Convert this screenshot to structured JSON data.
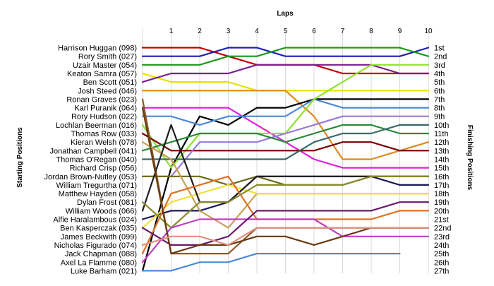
{
  "chart_data": {
    "type": "line",
    "x_title": "Laps",
    "left_axis_title": "Starting Positions",
    "right_axis_title": "Finishing Positions",
    "x": [
      0,
      1,
      2,
      3,
      4,
      5,
      6,
      7,
      8,
      9,
      10
    ],
    "lap_labels": [
      "1",
      "2",
      "3",
      "4",
      "5",
      "6",
      "7",
      "8",
      "9",
      "10"
    ],
    "start_labels": [
      "Harrison Huggan (098)",
      "Rory Smith (027)",
      "Uzair Master (054)",
      "Keaton Samra (057)",
      "Ben Scott (051)",
      "Josh Steed (046)",
      "Ronan Graves (023)",
      "Karl Puranik (064)",
      "Rory Hudson (022)",
      "Lochlan Beerman (016)",
      "Thomas Row (033)",
      "Kieran Welsh (078)",
      "Jonathan Campbell (041)",
      "Thomas O'Regan (040)",
      "Richard Crisp (056)",
      "Jordan Brown-Nutley (053)",
      "William Tregurtha (071)",
      "Matthew Hayden (058)",
      "Dylan Frost (081)",
      "William Woods (066)",
      "Alfie Haralambous (024)",
      "Ben Kasperczak (035)",
      "James Beckwith (099)",
      "Nicholas Figurado (074)",
      "Jack Chapman (088)",
      "Axel La Flamme (080)",
      "Luke Barham (021)"
    ],
    "finish_labels": [
      "1st",
      "2nd",
      "3rd",
      "4th",
      "5th",
      "6th",
      "7th",
      "8th",
      "9th",
      "10th",
      "11th",
      "12th",
      "13th",
      "14th",
      "15th",
      "16th",
      "17th",
      "18th",
      "19th",
      "20th",
      "21st",
      "22nd",
      "23rd",
      "24th",
      "25th",
      "26th",
      "27th"
    ],
    "series": [
      {
        "color": "#c00000",
        "values": [
          1,
          1,
          1,
          2,
          3,
          3,
          3,
          4,
          4,
          4,
          4
        ]
      },
      {
        "color": "#1f1fb4",
        "values": [
          2,
          2,
          2,
          1,
          1,
          2,
          2,
          2,
          2,
          2,
          1
        ]
      },
      {
        "color": "#1a9a1a",
        "values": [
          3,
          3,
          3,
          2,
          2,
          1,
          1,
          1,
          1,
          1,
          2
        ]
      },
      {
        "color": "#e8e000",
        "values": [
          4,
          5,
          5,
          5,
          6,
          6,
          6,
          6,
          6,
          6,
          6
        ]
      },
      {
        "color": "#7a1f8f",
        "values": [
          5,
          4,
          4,
          4,
          3,
          3,
          3,
          3,
          3,
          4,
          4
        ]
      },
      {
        "color": "#e08a1a",
        "values": [
          6,
          6,
          6,
          6,
          6,
          6,
          9,
          14,
          14,
          13,
          12
        ]
      },
      {
        "color": "#000000",
        "values": [
          27,
          15,
          9,
          10,
          8,
          8,
          7,
          7,
          7,
          7,
          7
        ]
      },
      {
        "color": "#e020e0",
        "values": [
          8,
          8,
          8,
          8,
          10,
          12,
          14,
          15,
          15,
          15,
          15
        ]
      },
      {
        "color": "#4a8ad8",
        "values": [
          9,
          9,
          10,
          9,
          9,
          9,
          7,
          8,
          8,
          8,
          8
        ]
      },
      {
        "color": "#90e030",
        "values": [
          10,
          15,
          11,
          11,
          11,
          11,
          7,
          5,
          3,
          3,
          3
        ]
      },
      {
        "color": "#7a0000",
        "values": [
          11,
          13,
          13,
          13,
          13,
          13,
          13,
          12,
          12,
          13,
          13
        ]
      },
      {
        "color": "#9a7ad8",
        "values": [
          16,
          16,
          12,
          12,
          12,
          11,
          10,
          9,
          9,
          9,
          9
        ]
      },
      {
        "color": "#2a8a3a",
        "values": [
          13,
          12,
          11,
          11,
          11,
          12,
          11,
          10,
          10,
          11,
          11
        ]
      },
      {
        "color": "#3a6a6a",
        "values": [
          14,
          14,
          14,
          14,
          14,
          14,
          12,
          11,
          11,
          10,
          10
        ]
      },
      {
        "color": "#8a5a2a",
        "values": [
          7,
          25,
          25,
          25,
          22,
          22,
          22,
          22,
          22,
          22,
          22
        ]
      },
      {
        "color": "#6a6a1a",
        "values": [
          16,
          16,
          16,
          17,
          16,
          17,
          17,
          17,
          16,
          16,
          16
        ]
      },
      {
        "color": "#1a1a5a",
        "values": [
          21,
          20,
          20,
          19,
          16,
          16,
          16,
          16,
          16,
          17,
          17
        ]
      },
      {
        "color": "#c8a050",
        "values": [
          12,
          14,
          20,
          22,
          18,
          18,
          18,
          18,
          18,
          18,
          18
        ]
      },
      {
        "color": "#f0e040",
        "values": [
          22,
          19,
          18,
          17,
          18,
          18,
          18,
          18,
          18,
          18,
          18
        ]
      },
      {
        "color": "#1f1f1f",
        "values": [
          20,
          10,
          19,
          19,
          16,
          16,
          16,
          16,
          16,
          16,
          16
        ]
      },
      {
        "color": "#e07020",
        "values": [
          25,
          18,
          17,
          16,
          21,
          21,
          21,
          21,
          21,
          20,
          20
        ]
      },
      {
        "color": "#8a8a2a",
        "values": [
          19,
          22,
          19,
          19,
          17,
          17,
          17,
          17,
          16,
          16,
          16
        ]
      },
      {
        "color": "#c040c0",
        "values": [
          26,
          22,
          21,
          21,
          21,
          21,
          21,
          23,
          23,
          23,
          23
        ]
      },
      {
        "color": "#6a1a6a",
        "values": [
          22,
          24,
          24,
          23,
          20,
          20,
          20,
          20,
          20,
          19,
          19
        ]
      },
      {
        "color": "#6a3a10",
        "values": [
          8,
          25,
          24,
          24,
          23,
          23,
          24,
          23,
          22,
          22,
          22
        ]
      },
      {
        "color": "#e09080",
        "values": [
          24,
          23,
          23,
          24,
          22,
          22,
          22,
          22,
          22,
          22,
          22
        ]
      },
      {
        "color": "#4a8ad8",
        "values": [
          27,
          27,
          26,
          26,
          25,
          25,
          25,
          25,
          25,
          25,
          null
        ]
      }
    ]
  }
}
